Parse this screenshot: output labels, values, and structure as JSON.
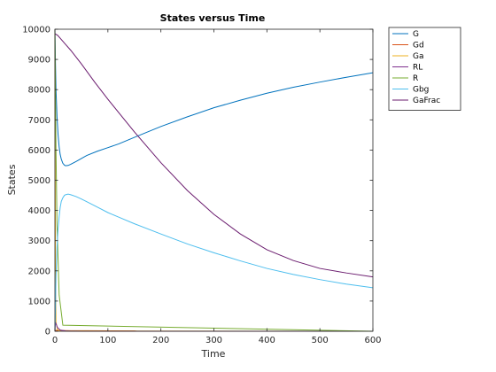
{
  "chart_data": {
    "type": "line",
    "title": "States versus Time",
    "xlabel": "Time",
    "ylabel": "States",
    "xlim": [
      0,
      600
    ],
    "ylim": [
      0,
      10000
    ],
    "xticks": [
      0,
      100,
      200,
      300,
      400,
      500,
      600
    ],
    "yticks": [
      0,
      1000,
      2000,
      3000,
      4000,
      5000,
      6000,
      7000,
      8000,
      9000,
      10000
    ],
    "grid": false,
    "legend_position": "top-right-outside",
    "series": [
      {
        "name": "G",
        "color": "#0072BD",
        "x": [
          0,
          1,
          2,
          4,
          6,
          8,
          10,
          12,
          15,
          18,
          20,
          25,
          30,
          40,
          50,
          60,
          80,
          100,
          120,
          150,
          200,
          250,
          300,
          350,
          400,
          450,
          500,
          550,
          600
        ],
        "y": [
          10000,
          8900,
          8000,
          7100,
          6500,
          6100,
          5850,
          5700,
          5560,
          5500,
          5480,
          5490,
          5530,
          5620,
          5720,
          5820,
          5960,
          6080,
          6200,
          6420,
          6780,
          7100,
          7400,
          7650,
          7880,
          8080,
          8250,
          8410,
          8560
        ]
      },
      {
        "name": "Gd",
        "color": "#D95319",
        "x": [
          0,
          1,
          2,
          5,
          10,
          30,
          60,
          100,
          150,
          155
        ],
        "y": [
          0,
          25,
          30,
          28,
          25,
          20,
          18,
          15,
          12,
          0
        ]
      },
      {
        "name": "Ga",
        "color": "#EDB120",
        "x": [
          0,
          0.5,
          1,
          2,
          5,
          10,
          600
        ],
        "y": [
          9950,
          6000,
          2000,
          300,
          50,
          10,
          0
        ]
      },
      {
        "name": "RL",
        "color": "#7E2F8E",
        "x": [
          0,
          1,
          2,
          5,
          10,
          20,
          30,
          40,
          50,
          100,
          600
        ],
        "y": [
          0,
          300,
          250,
          120,
          40,
          10,
          5,
          2,
          0,
          0,
          0
        ]
      },
      {
        "name": "R",
        "color": "#77AC30",
        "x": [
          0,
          0.5,
          1,
          2,
          4,
          8,
          15,
          600
        ],
        "y": [
          10000,
          9000,
          7800,
          6000,
          3500,
          1200,
          200,
          0
        ]
      },
      {
        "name": "Gbg",
        "color": "#4DBEEE",
        "x": [
          0,
          1,
          2,
          4,
          6,
          8,
          10,
          12,
          15,
          18,
          20,
          25,
          30,
          40,
          50,
          60,
          80,
          100,
          120,
          150,
          200,
          250,
          300,
          350,
          400,
          450,
          500,
          550,
          600
        ],
        "y": [
          0,
          700,
          1800,
          2800,
          3400,
          3800,
          4100,
          4300,
          4420,
          4500,
          4520,
          4540,
          4520,
          4460,
          4380,
          4290,
          4110,
          3930,
          3780,
          3560,
          3220,
          2890,
          2600,
          2330,
          2080,
          1880,
          1710,
          1560,
          1440
        ]
      },
      {
        "name": "GaFrac",
        "color": "#6A1B6E",
        "x": [
          0,
          5,
          10,
          20,
          30,
          50,
          75,
          100,
          150,
          200,
          250,
          300,
          350,
          400,
          450,
          500,
          550,
          600
        ],
        "y": [
          9850,
          9800,
          9700,
          9500,
          9300,
          8850,
          8250,
          7680,
          6600,
          5580,
          4660,
          3870,
          3220,
          2700,
          2340,
          2080,
          1930,
          1800
        ]
      }
    ]
  }
}
